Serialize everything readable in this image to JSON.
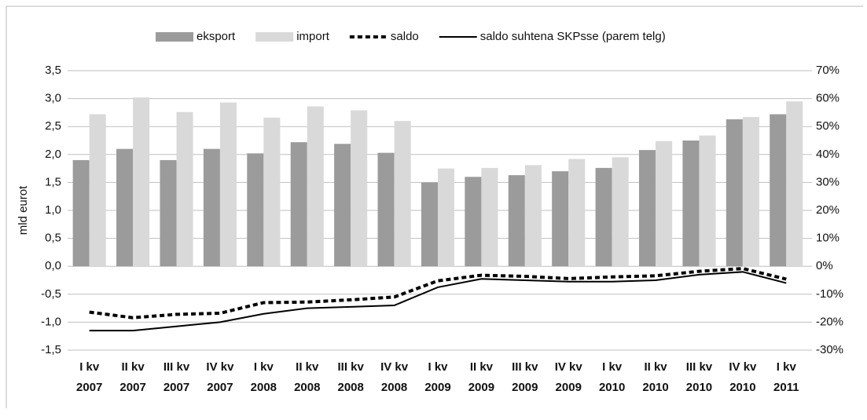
{
  "chart_data": {
    "type": "bar-line",
    "y_axis_label": "mld eurot",
    "categories": [
      [
        "I kv",
        "2007"
      ],
      [
        "II kv",
        "2007"
      ],
      [
        "III kv",
        "2007"
      ],
      [
        "IV kv",
        "2007"
      ],
      [
        "I kv",
        "2008"
      ],
      [
        "II kv",
        "2008"
      ],
      [
        "III kv",
        "2008"
      ],
      [
        "IV kv",
        "2008"
      ],
      [
        "I kv",
        "2009"
      ],
      [
        "II kv",
        "2009"
      ],
      [
        "III kv",
        "2009"
      ],
      [
        "IV kv",
        "2009"
      ],
      [
        "I kv",
        "2010"
      ],
      [
        "II kv",
        "2010"
      ],
      [
        "III kv",
        "2010"
      ],
      [
        "IV kv",
        "2010"
      ],
      [
        "I kv",
        "2011"
      ]
    ],
    "series": [
      {
        "name": "eksport",
        "kind": "bar",
        "color": "#9b9b9b",
        "values": [
          1.9,
          2.1,
          1.9,
          2.1,
          2.02,
          2.22,
          2.19,
          2.03,
          1.5,
          1.6,
          1.63,
          1.7,
          1.76,
          2.08,
          2.25,
          2.63,
          2.72
        ]
      },
      {
        "name": "import",
        "kind": "bar",
        "color": "#d9d9d9",
        "values": [
          2.72,
          3.02,
          2.76,
          2.93,
          2.66,
          2.86,
          2.79,
          2.6,
          1.75,
          1.76,
          1.81,
          1.92,
          1.95,
          2.24,
          2.34,
          2.67,
          2.95
        ]
      },
      {
        "name": "saldo",
        "kind": "dashed-line",
        "color": "#000000",
        "values": [
          -0.82,
          -0.92,
          -0.86,
          -0.84,
          -0.65,
          -0.64,
          -0.6,
          -0.55,
          -0.26,
          -0.16,
          -0.18,
          -0.22,
          -0.19,
          -0.17,
          -0.09,
          -0.04,
          -0.23
        ]
      },
      {
        "name": "saldo suhtena SKPsse (parem telg)",
        "kind": "line",
        "color": "#000000",
        "axis": "y2",
        "values": [
          -23,
          -23,
          -21.5,
          -20,
          -17,
          -15,
          -14.5,
          -14,
          -7.5,
          -4.5,
          -5,
          -5.5,
          -5.5,
          -5,
          -3,
          -2,
          -6
        ]
      }
    ],
    "ylim": [
      -1.5,
      3.5
    ],
    "yticks": [
      {
        "value": 3.5,
        "label": "3,5"
      },
      {
        "value": 3,
        "label": "3,0"
      },
      {
        "value": 2.5,
        "label": "2,5"
      },
      {
        "value": 2,
        "label": "2,0"
      },
      {
        "value": 1.5,
        "label": "1,5"
      },
      {
        "value": 1,
        "label": "1,0"
      },
      {
        "value": 0.5,
        "label": "0,5"
      },
      {
        "value": 0,
        "label": "0,0"
      },
      {
        "value": -0.5,
        "label": "-0,5"
      },
      {
        "value": -1,
        "label": "-1,0"
      },
      {
        "value": -1.5,
        "label": "-1,5"
      }
    ],
    "y2lim": [
      -30,
      70
    ],
    "y2ticks": [
      {
        "value": 70,
        "label": "70%"
      },
      {
        "value": 60,
        "label": "60%"
      },
      {
        "value": 50,
        "label": "50%"
      },
      {
        "value": 40,
        "label": "40%"
      },
      {
        "value": 30,
        "label": "30%"
      },
      {
        "value": 20,
        "label": "20%"
      },
      {
        "value": 10,
        "label": "10%"
      },
      {
        "value": 0,
        "label": "0%"
      },
      {
        "value": -10,
        "label": "-10%"
      },
      {
        "value": -20,
        "label": "-20%"
      },
      {
        "value": -30,
        "label": "-30%"
      }
    ],
    "grid": true,
    "legend": "top"
  }
}
